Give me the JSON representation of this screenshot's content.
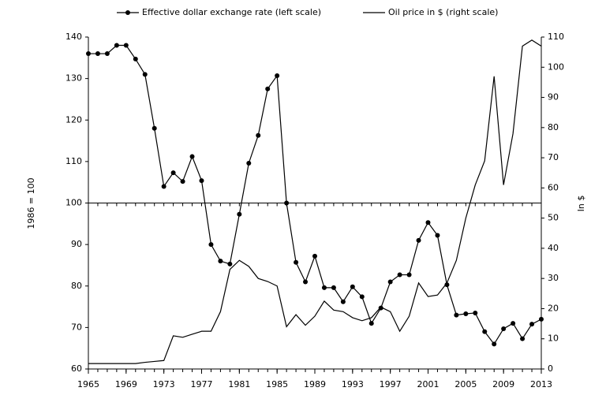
{
  "chart_data": {
    "type": "line",
    "x": [
      1965,
      1966,
      1967,
      1968,
      1969,
      1970,
      1971,
      1972,
      1973,
      1974,
      1975,
      1976,
      1977,
      1978,
      1979,
      1980,
      1981,
      1982,
      1983,
      1984,
      1985,
      1986,
      1987,
      1988,
      1989,
      1990,
      1991,
      1992,
      1993,
      1994,
      1995,
      1996,
      1997,
      1998,
      1999,
      2000,
      2001,
      2002,
      2003,
      2004,
      2005,
      2006,
      2007,
      2008,
      2009,
      2010,
      2011,
      2012,
      2013
    ],
    "series": [
      {
        "name": "Effective dollar exchange rate (left scale)",
        "color": "#000000",
        "marker": true,
        "values": [
          136,
          136,
          136,
          138,
          138,
          134.7,
          131,
          118,
          104,
          107.3,
          105.2,
          111.2,
          105.4,
          90,
          86,
          85.3,
          97.3,
          109.6,
          116.3,
          127.5,
          130.7,
          100,
          85.7,
          81,
          87.2,
          79.6,
          79.6,
          76.2,
          79.8,
          77.4,
          71,
          74.7,
          81,
          82.7,
          82.7,
          91,
          95.3,
          92.2,
          80.3,
          73,
          73.3,
          73.5,
          69,
          66,
          69.7,
          71,
          67.3,
          70.8,
          72
        ]
      },
      {
        "name": "Oil price in $ (right scale)",
        "color": "#000000",
        "marker": false,
        "axis": "y2",
        "values": [
          1.8,
          1.8,
          1.8,
          1.8,
          1.8,
          1.8,
          2.2,
          2.5,
          2.8,
          11,
          10.5,
          11.5,
          12.5,
          12.5,
          19,
          33,
          36,
          34,
          30,
          29,
          27.5,
          14,
          18,
          14.5,
          17.5,
          22.5,
          19.5,
          19,
          17,
          16,
          17,
          20.5,
          19,
          12.5,
          17.5,
          28.5,
          24,
          24.5,
          28.5,
          36,
          50,
          61,
          69,
          97,
          61,
          78,
          107,
          109,
          107
        ]
      }
    ],
    "xlim": [
      1965,
      2013
    ],
    "xticks": [
      1965,
      1969,
      1973,
      1977,
      1981,
      1985,
      1989,
      1993,
      1997,
      2001,
      2005,
      2009,
      2013
    ],
    "ylim": [
      60,
      140
    ],
    "yticks": [
      60,
      70,
      80,
      90,
      100,
      110,
      120,
      130,
      140
    ],
    "y2lim": [
      0,
      110
    ],
    "y2ticks": [
      0,
      10,
      20,
      30,
      40,
      50,
      60,
      70,
      80,
      90,
      100,
      110
    ],
    "reference_line": 100,
    "ylabel": "1986 = 100",
    "y2label": "In $",
    "legend": "top"
  }
}
